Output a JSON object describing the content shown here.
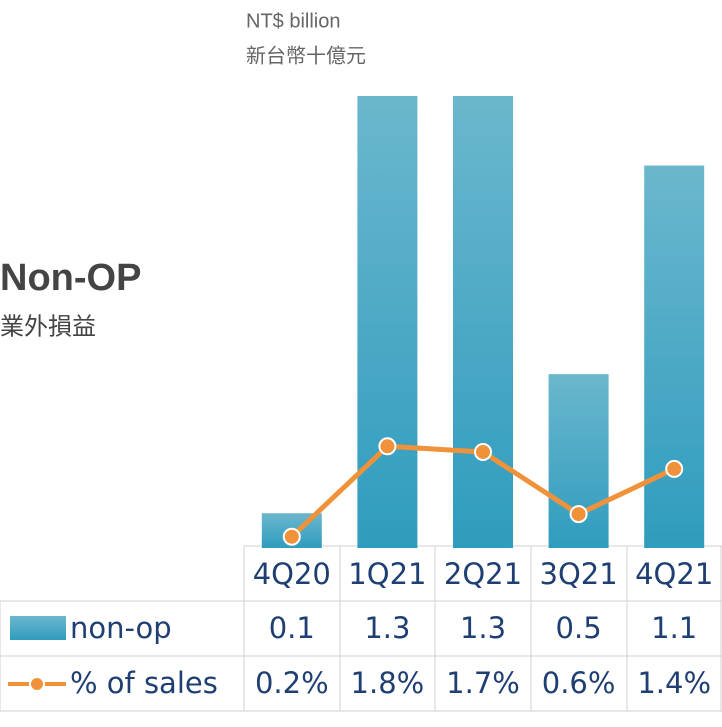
{
  "chart_data": {
    "type": "bar",
    "unit_label": "NT$ billion",
    "unit_label_zh": "新台幣十億元",
    "title": "Non-OP",
    "subtitle": "業外損益",
    "categories": [
      "4Q20",
      "1Q21",
      "2Q21",
      "3Q21",
      "4Q21"
    ],
    "series": [
      {
        "name": "non-op",
        "color": "#3ea6c6",
        "values": [
          0.1,
          1.3,
          1.3,
          0.5,
          1.1
        ]
      },
      {
        "name": "% of sales",
        "type": "line",
        "axis": "y2",
        "color": "#f0923a",
        "values": [
          0.2,
          1.8,
          1.7,
          0.6,
          1.4
        ],
        "value_labels": [
          "0.2%",
          "1.8%",
          "1.7%",
          "0.6%",
          "1.4%"
        ]
      }
    ],
    "ylim": [
      0,
      1.3
    ],
    "y2lim": [
      0,
      8
    ]
  }
}
